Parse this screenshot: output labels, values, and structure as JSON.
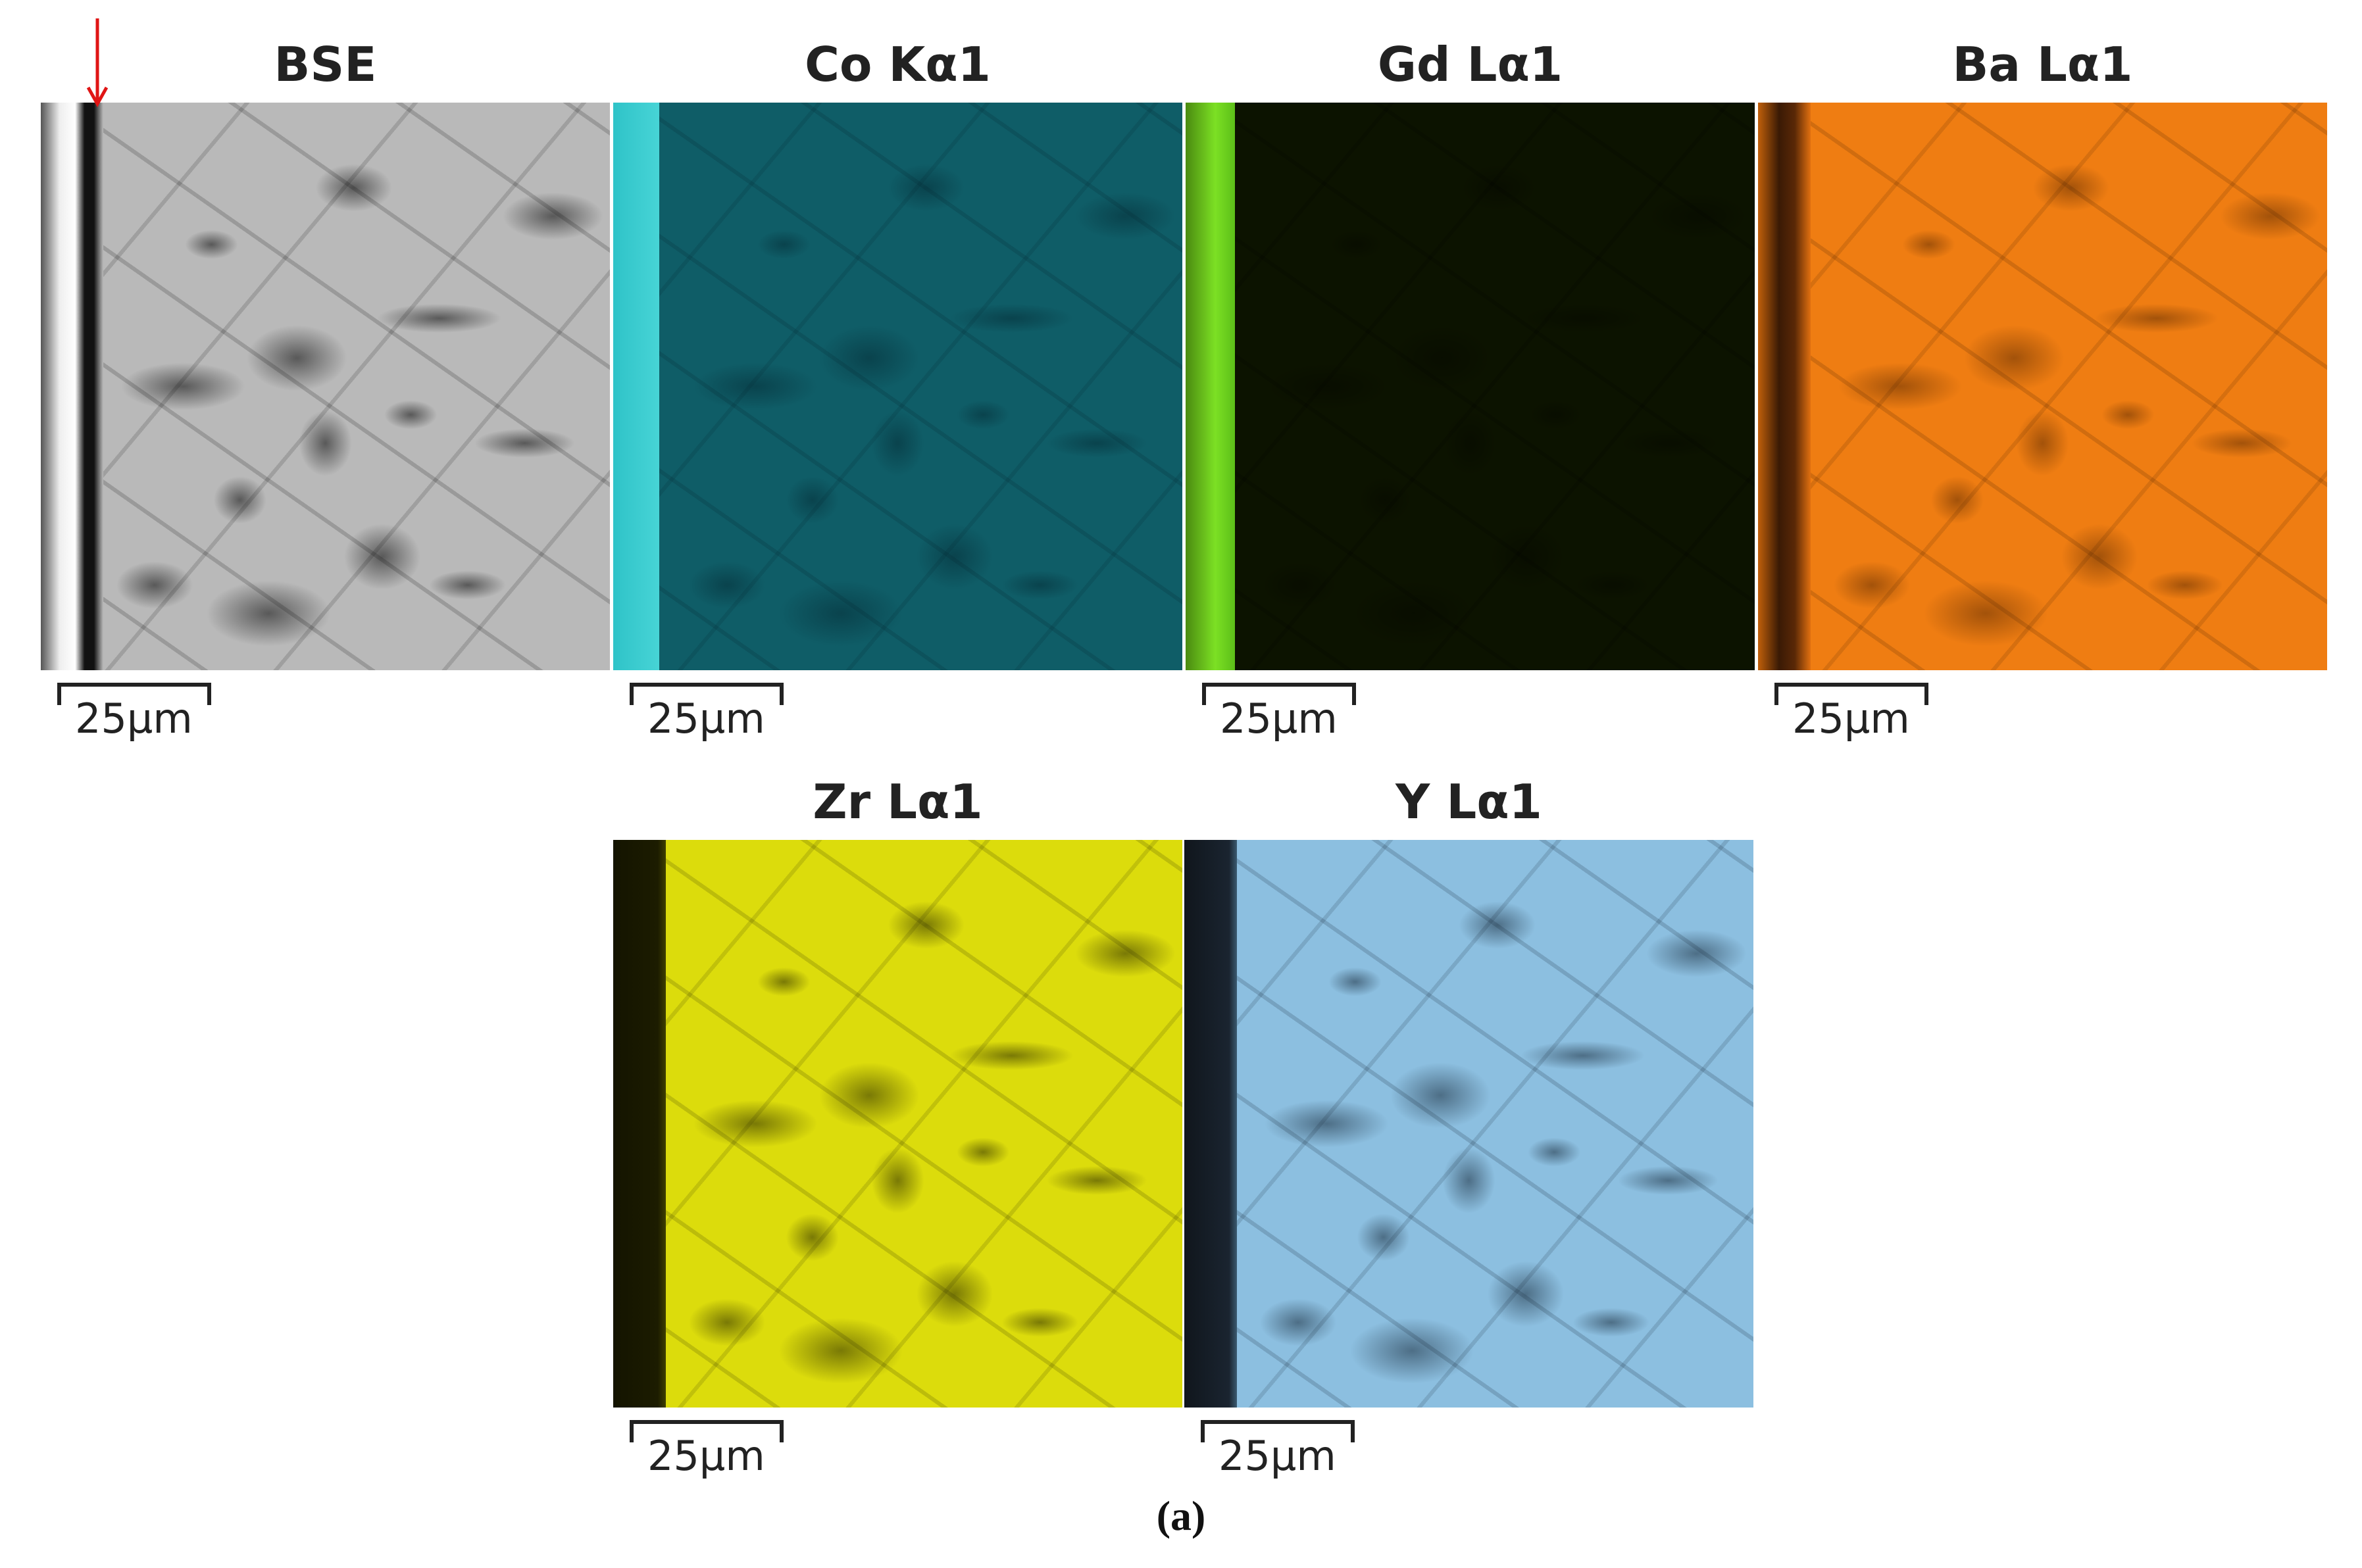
{
  "panels": [
    {
      "title": "BSE",
      "scale": "25μm"
    },
    {
      "title": "Co Kα1",
      "scale": "25μm"
    },
    {
      "title": "Gd Lα1",
      "scale": "25μm"
    },
    {
      "title": "Ba Lα1",
      "scale": "25μm"
    },
    {
      "title": "Zr Lα1",
      "scale": "25μm"
    },
    {
      "title": "Y Lα1",
      "scale": "25μm"
    }
  ],
  "caption": "(a)"
}
